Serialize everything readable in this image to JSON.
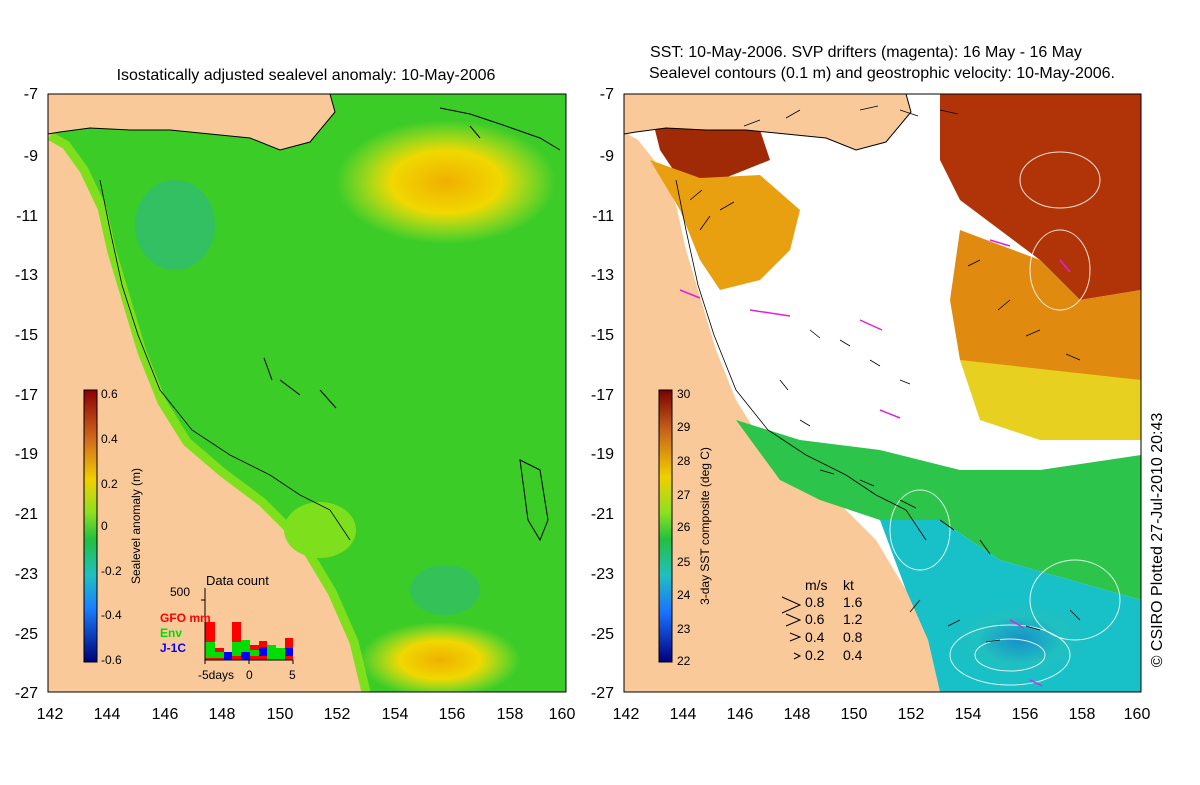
{
  "left": {
    "title": "Isostatically adjusted sealevel anomaly: 10-May-2006",
    "colorbar": {
      "label": "Sealevel anomaly (m)",
      "ticks": [
        "0.6",
        "0.4",
        "0.2",
        "0",
        "-0.2",
        "-0.4",
        "-0.6"
      ]
    },
    "data_count": {
      "title": "Data count",
      "scale_label": "500",
      "legend": [
        {
          "label": "GFO mm",
          "color": "#ff0000"
        },
        {
          "label": "Env",
          "color": "#00dd00"
        },
        {
          "label": "J-1C",
          "color": "#0000ff"
        }
      ],
      "xticks": [
        "-5days",
        "0",
        "5"
      ]
    }
  },
  "right": {
    "title_line1": "SST: 10-May-2006. SVP drifters (magenta): 16 May - 16 May",
    "title_line2": "Sealevel contours (0.1 m) and geostrophic velocity: 10-May-2006.",
    "colorbar": {
      "label": "3-day SST composite (deg C)",
      "ticks": [
        "30",
        "29",
        "28",
        "27",
        "26",
        "25",
        "24",
        "23",
        "22"
      ]
    },
    "speed_legend": {
      "header_ms": "m/s",
      "header_kt": "kt",
      "rows": [
        {
          "ms": "0.8",
          "kt": "1.6"
        },
        {
          "ms": "0.6",
          "kt": "1.2"
        },
        {
          "ms": "0.4",
          "kt": "0.8"
        },
        {
          "ms": "0.2",
          "kt": "0.4"
        }
      ]
    }
  },
  "axes": {
    "y_ticks": [
      "-7",
      "-9",
      "-11",
      "-13",
      "-15",
      "-17",
      "-19",
      "-21",
      "-23",
      "-25",
      "-27"
    ],
    "x_ticks": [
      "142",
      "144",
      "146",
      "148",
      "150",
      "152",
      "154",
      "156",
      "158",
      "160"
    ]
  },
  "credit": "© CSIRO Plotted 27-Jul-2010 20:43",
  "colors": {
    "land": "#f9c99a",
    "sea_green": "#3ccc28",
    "sea_lightgreen": "#7ee01c",
    "sea_yellow": "#e4e820",
    "sst_red": "#b03408",
    "sst_orange": "#e08a10",
    "sst_green": "#2cc44a",
    "sst_cyan": "#18c0c8"
  }
}
